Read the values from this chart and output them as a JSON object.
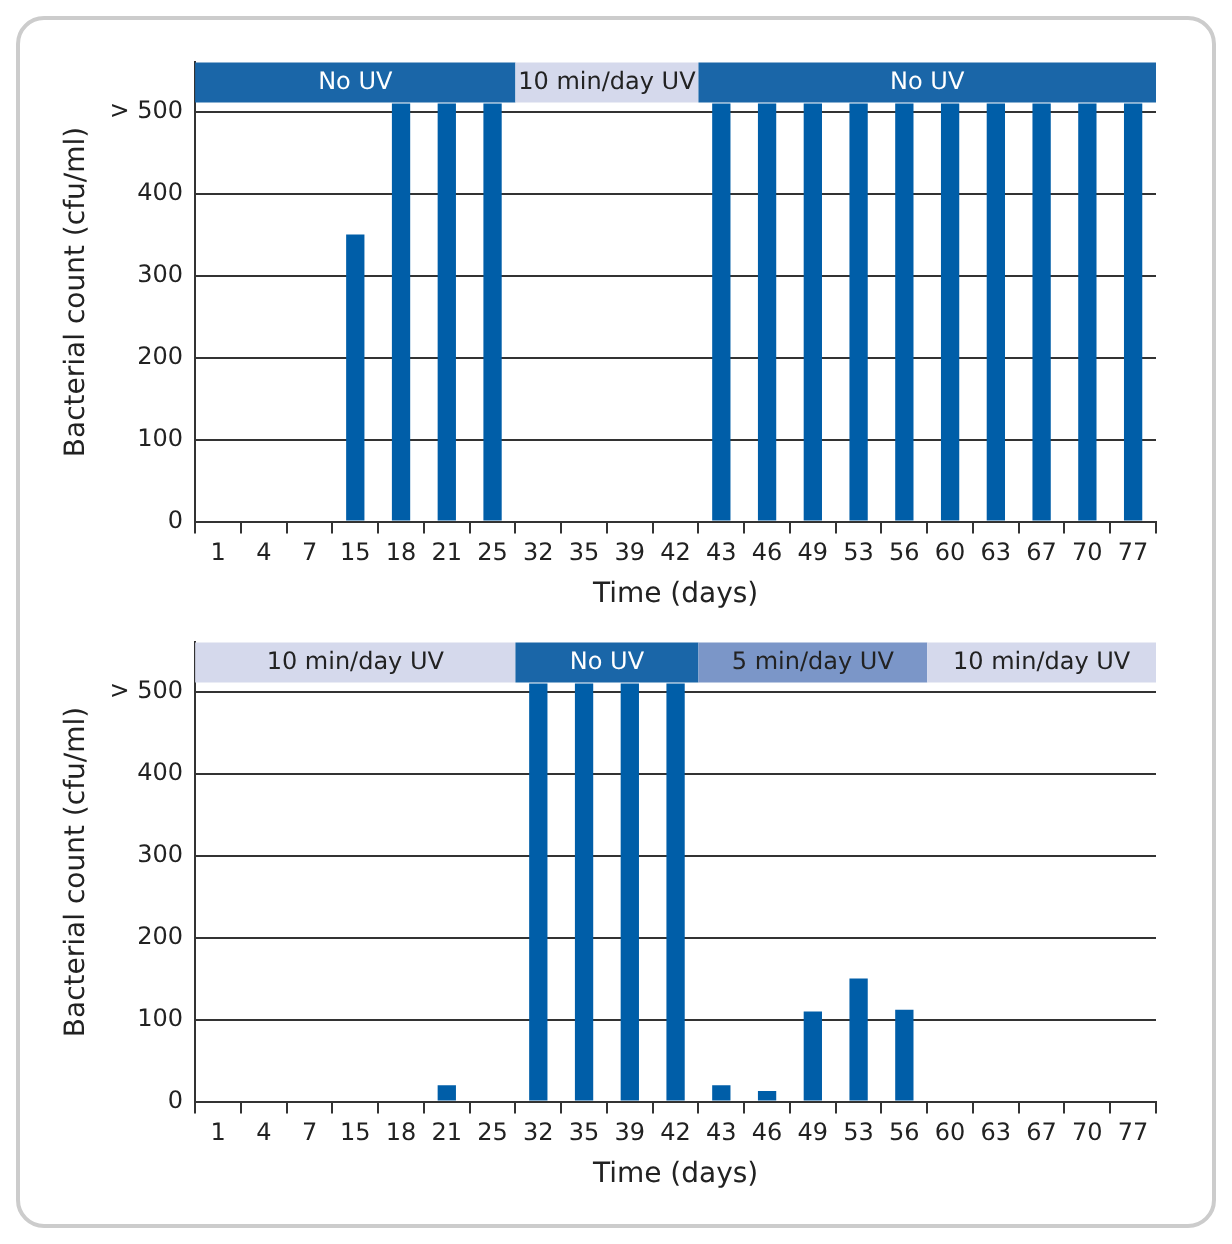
{
  "chart_data": [
    {
      "type": "bar",
      "categories": [
        "1",
        "4",
        "7",
        "15",
        "18",
        "21",
        "25",
        "32",
        "35",
        "39",
        "42",
        "43",
        "46",
        "49",
        "53",
        "56",
        "60",
        "63",
        "67",
        "70",
        "77"
      ],
      "values": [
        0,
        0,
        0,
        350,
        510,
        510,
        510,
        0,
        0,
        0,
        0,
        510,
        510,
        510,
        510,
        510,
        510,
        510,
        510,
        510,
        510
      ],
      "color": "#005ea8",
      "ylim": [
        0,
        560
      ],
      "yticks": [
        0,
        100,
        200,
        300,
        400,
        {
          "value": 500,
          "label": "> 500"
        }
      ],
      "grid": "y",
      "xlabel": "Time (days)",
      "ylabel": "Bacterial count (cfu/ml)",
      "bands": [
        {
          "axis": "x",
          "from": "1",
          "to": "25",
          "label": "No UV",
          "color": "#1a66a8"
        },
        {
          "axis": "x",
          "from": "32",
          "to": "42",
          "label": "10 min/day UV",
          "color": "#d5d9ec"
        },
        {
          "axis": "x",
          "from": "43",
          "to": "77",
          "label": "No UV",
          "color": "#1a66a8"
        }
      ]
    },
    {
      "type": "bar",
      "categories": [
        "1",
        "4",
        "7",
        "15",
        "18",
        "21",
        "25",
        "32",
        "35",
        "39",
        "42",
        "43",
        "46",
        "49",
        "53",
        "56",
        "60",
        "63",
        "67",
        "70",
        "77"
      ],
      "values": [
        0,
        0,
        0,
        0,
        0,
        20,
        0,
        510,
        510,
        510,
        510,
        20,
        13,
        110,
        150,
        112,
        0,
        0,
        0,
        0,
        0
      ],
      "color": "#005ea8",
      "ylim": [
        0,
        560
      ],
      "yticks": [
        0,
        100,
        200,
        300,
        400,
        {
          "value": 500,
          "label": "> 500"
        }
      ],
      "grid": "y",
      "xlabel": "Time (days)",
      "ylabel": "Bacterial count (cfu/ml)",
      "bands": [
        {
          "axis": "x",
          "from": "1",
          "to": "25",
          "label": "10 min/day UV",
          "color": "#d5d9ec"
        },
        {
          "axis": "x",
          "from": "32",
          "to": "42",
          "label": "No UV",
          "color": "#1a66a8"
        },
        {
          "axis": "x",
          "from": "43",
          "to": "56",
          "label": "5 min/day UV",
          "color": "#7b96c8"
        },
        {
          "axis": "x",
          "from": "60",
          "to": "77",
          "label": "10 min/day UV",
          "color": "#d5d9ec"
        }
      ]
    }
  ]
}
